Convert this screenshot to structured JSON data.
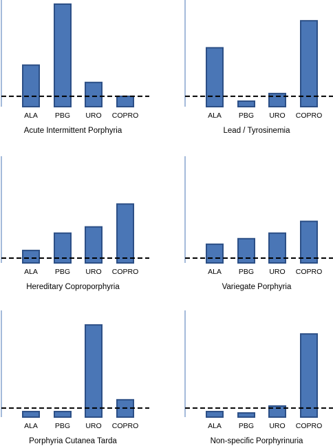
{
  "chart_data": [
    {
      "type": "bar",
      "title": "Acute Intermittent Porphyria",
      "categories": [
        "ALA",
        "PBG",
        "URO",
        "COPRO"
      ],
      "values": [
        60,
        148,
        35,
        15
      ],
      "reference_line": 15,
      "ylim": [
        0,
        150
      ],
      "grid": false,
      "color": "#4a76b6"
    },
    {
      "type": "bar",
      "title": "Lead / Tyrosinemia",
      "categories": [
        "ALA",
        "PBG",
        "URO",
        "COPRO"
      ],
      "values": [
        85,
        8,
        19,
        124
      ],
      "reference_line": 15,
      "ylim": [
        0,
        150
      ],
      "grid": false,
      "color": "#4a76b6"
    },
    {
      "type": "bar",
      "title": "Hereditary Coproporphyria",
      "categories": [
        "ALA",
        "PBG",
        "URO",
        "COPRO"
      ],
      "values": [
        18,
        43,
        52,
        85
      ],
      "reference_line": 7,
      "ylim": [
        0,
        150
      ],
      "grid": false,
      "color": "#4a76b6"
    },
    {
      "type": "bar",
      "title": "Variegate Porphyria",
      "categories": [
        "ALA",
        "PBG",
        "URO",
        "COPRO"
      ],
      "values": [
        27,
        35,
        43,
        60
      ],
      "reference_line": 7,
      "ylim": [
        0,
        150
      ],
      "grid": false,
      "color": "#4a76b6"
    },
    {
      "type": "bar",
      "title": "Porphyria Cutanea Tarda",
      "categories": [
        "ALA",
        "PBG",
        "URO",
        "COPRO"
      ],
      "values": [
        8,
        8,
        133,
        25
      ],
      "reference_line": 13,
      "ylim": [
        0,
        150
      ],
      "grid": false,
      "color": "#4a76b6"
    },
    {
      "type": "bar",
      "title": "Non-specific Porphyrinuria",
      "categories": [
        "ALA",
        "PBG",
        "URO",
        "COPRO"
      ],
      "values": [
        8,
        6,
        16,
        120
      ],
      "reference_line": 13,
      "ylim": [
        0,
        150
      ],
      "grid": false,
      "color": "#4a76b6"
    }
  ]
}
